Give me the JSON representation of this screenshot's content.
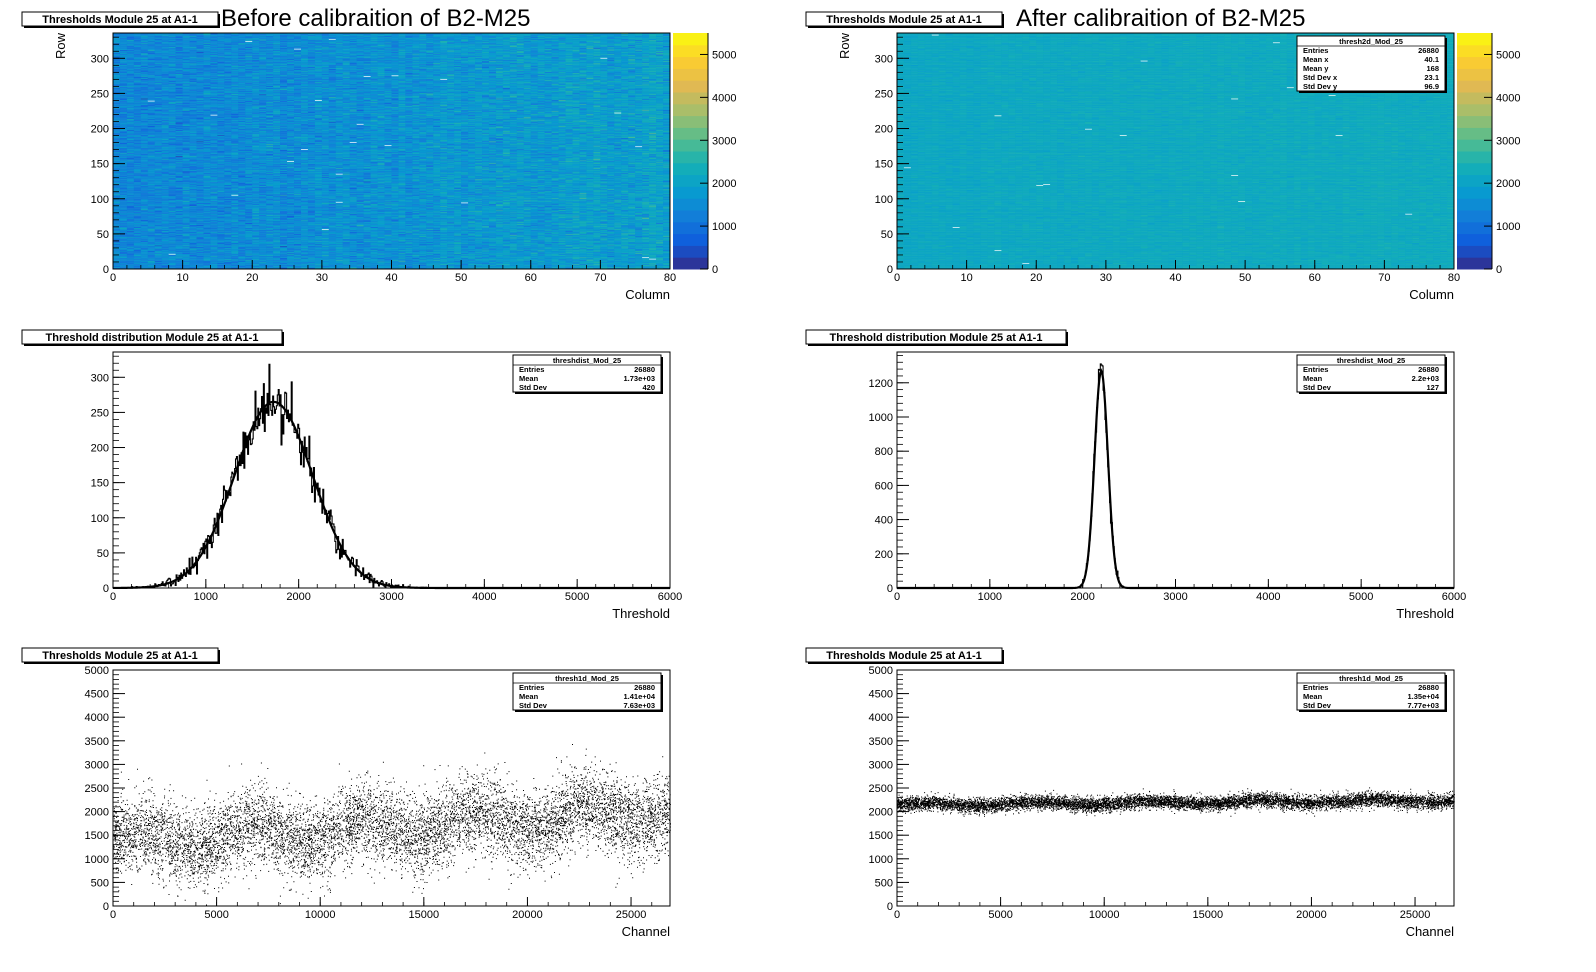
{
  "headings": {
    "before": "Before calibraition of B2-M25",
    "after": "After calibraition of B2-M25"
  },
  "chart_data": [
    {
      "type": "heatmap",
      "title": "Thresholds Module 25 at A1-1",
      "xlabel": "Column",
      "ylabel": "Row",
      "xlim": [
        0,
        80
      ],
      "ylim": [
        0,
        336
      ],
      "xticks": [
        0,
        10,
        20,
        30,
        40,
        50,
        60,
        70,
        80
      ],
      "yticks": [
        0,
        50,
        100,
        150,
        200,
        250,
        300
      ],
      "zlim": [
        0,
        5500
      ],
      "zticks": [
        0,
        1000,
        2000,
        3000,
        4000,
        5000
      ],
      "colormap": "parula",
      "typical_value": 1730,
      "spread": 420,
      "column_trend": [
        1350,
        2000
      ],
      "stats": null
    },
    {
      "type": "heatmap",
      "title": "Thresholds Module 25 at A1-1",
      "xlabel": "Column",
      "ylabel": "Row",
      "xlim": [
        0,
        80
      ],
      "ylim": [
        0,
        336
      ],
      "xticks": [
        0,
        10,
        20,
        30,
        40,
        50,
        60,
        70,
        80
      ],
      "yticks": [
        0,
        50,
        100,
        150,
        200,
        250,
        300
      ],
      "zlim": [
        0,
        5500
      ],
      "zticks": [
        0,
        1000,
        2000,
        3000,
        4000,
        5000
      ],
      "colormap": "parula",
      "typical_value": 2200,
      "spread": 127,
      "column_trend": [
        2150,
        2250
      ],
      "stats": {
        "name": "thresh2d_Mod_25",
        "rows": [
          [
            "Entries",
            "26880"
          ],
          [
            "Mean x",
            "40.1"
          ],
          [
            "Mean y",
            "168"
          ],
          [
            "Std Dev x",
            "23.1"
          ],
          [
            "Std Dev y",
            "96.9"
          ]
        ]
      }
    },
    {
      "type": "histogram",
      "title": "Threshold distribution Module 25 at A1-1",
      "xlabel": "Threshold",
      "ylabel": "",
      "xlim": [
        0,
        6000
      ],
      "ylim": [
        0,
        336
      ],
      "xticks": [
        0,
        1000,
        2000,
        3000,
        4000,
        5000,
        6000
      ],
      "yticks": [
        0,
        50,
        100,
        150,
        200,
        250,
        300
      ],
      "fit": {
        "amplitude": 265,
        "mean": 1730,
        "sigma": 420
      },
      "peak_max": 320,
      "stats": {
        "name": "threshdist_Mod_25",
        "rows": [
          [
            "Entries",
            "26880"
          ],
          [
            "Mean",
            "1.73e+03"
          ],
          [
            "Std Dev",
            "420"
          ]
        ]
      }
    },
    {
      "type": "histogram",
      "title": "Threshold distribution Module 25 at A1-1",
      "xlabel": "Threshold",
      "ylabel": "",
      "xlim": [
        0,
        6000
      ],
      "ylim": [
        0,
        1380
      ],
      "xticks": [
        0,
        1000,
        2000,
        3000,
        4000,
        5000,
        6000
      ],
      "yticks": [
        0,
        200,
        400,
        600,
        800,
        1000,
        1200
      ],
      "fit": {
        "amplitude": 1270,
        "mean": 2200,
        "sigma": 72
      },
      "peak_max": 1310,
      "stats": {
        "name": "threshdist_Mod_25",
        "rows": [
          [
            "Entries",
            "26880"
          ],
          [
            "Mean",
            "2.2e+03"
          ],
          [
            "Std Dev",
            "127"
          ]
        ]
      }
    },
    {
      "type": "scatter",
      "title": "Thresholds Module 25 at A1-1",
      "xlabel": "Channel",
      "ylabel": "",
      "xlim": [
        0,
        26880
      ],
      "ylim": [
        0,
        5000
      ],
      "xticks": [
        0,
        5000,
        10000,
        15000,
        20000,
        25000
      ],
      "yticks": [
        0,
        500,
        1000,
        1500,
        2000,
        2500,
        3000,
        3500,
        4000,
        4500,
        5000
      ],
      "trend": [
        1350,
        2000
      ],
      "spread": 420,
      "stats": {
        "name": "thresh1d_Mod_25",
        "rows": [
          [
            "Entries",
            "26880"
          ],
          [
            "Mean",
            "1.41e+04"
          ],
          [
            "Std Dev",
            "7.63e+03"
          ]
        ]
      }
    },
    {
      "type": "scatter",
      "title": "Thresholds Module 25 at A1-1",
      "xlabel": "Channel",
      "ylabel": "",
      "xlim": [
        0,
        26880
      ],
      "ylim": [
        0,
        5000
      ],
      "xticks": [
        0,
        5000,
        10000,
        15000,
        20000,
        25000
      ],
      "yticks": [
        0,
        500,
        1000,
        1500,
        2000,
        2500,
        3000,
        3500,
        4000,
        4500,
        5000
      ],
      "trend": [
        2150,
        2250
      ],
      "spread": 75,
      "stats": {
        "name": "thresh1d_Mod_25",
        "rows": [
          [
            "Entries",
            "26880"
          ],
          [
            "Mean",
            "1.35e+04"
          ],
          [
            "Std Dev",
            "7.77e+03"
          ]
        ]
      }
    }
  ]
}
